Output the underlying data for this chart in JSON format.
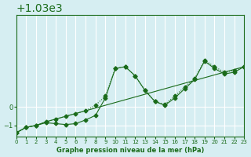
{
  "bg_color": "#d6eef2",
  "grid_color": "#ffffff",
  "line_color": "#1a6b1a",
  "marker_color": "#1a6b1a",
  "xlabel": "Graphe pression niveau de la mer (hPa)",
  "xlabel_color": "#1a6b1a",
  "ylabel_color": "#1a6b1a",
  "xlim": [
    0,
    23
  ],
  "ylim": [
    1028.4,
    1035.0
  ],
  "yticks": [
    1029,
    1030
  ],
  "xticks": [
    0,
    1,
    2,
    3,
    4,
    5,
    6,
    7,
    8,
    9,
    10,
    11,
    12,
    13,
    14,
    15,
    16,
    17,
    18,
    19,
    20,
    21,
    22,
    23
  ],
  "series1_x": [
    0,
    1,
    2,
    3,
    4,
    5,
    6,
    7,
    8,
    9,
    10,
    11,
    12,
    13,
    14,
    15,
    16,
    17,
    18,
    19,
    20,
    21,
    22,
    23
  ],
  "series1_y": [
    1028.6,
    1028.9,
    1029.0,
    1029.2,
    1029.35,
    1029.5,
    1029.65,
    1029.8,
    1029.95,
    1030.1,
    1030.25,
    1030.4,
    1030.55,
    1030.7,
    1030.85,
    1031.0,
    1031.15,
    1031.3,
    1031.45,
    1031.6,
    1031.75,
    1031.9,
    1032.05,
    1032.2
  ],
  "series2_x": [
    0,
    1,
    2,
    3,
    4,
    5,
    6,
    7,
    8,
    9,
    10,
    11,
    12,
    13,
    14,
    15,
    16,
    17,
    18,
    19,
    20,
    21,
    22,
    23
  ],
  "series2_y": [
    1028.6,
    1028.9,
    1029.0,
    1029.15,
    1029.1,
    1029.05,
    1029.1,
    1029.3,
    1029.55,
    1030.5,
    1032.1,
    1032.2,
    1031.7,
    1030.9,
    1030.3,
    1030.1,
    1030.5,
    1031.0,
    1031.5,
    1032.5,
    1032.1,
    1031.8,
    1031.9,
    1032.2
  ],
  "series3_x": [
    0,
    1,
    2,
    3,
    4,
    5,
    6,
    7,
    8,
    9,
    10,
    11,
    12,
    13,
    14,
    15,
    16,
    17,
    18,
    19,
    20,
    21,
    22,
    23
  ],
  "series3_y": [
    1028.6,
    1028.9,
    1029.0,
    1029.2,
    1029.35,
    1029.5,
    1029.65,
    1029.8,
    1030.1,
    1030.6,
    1032.1,
    1032.2,
    1031.7,
    1030.9,
    1030.3,
    1030.15,
    1030.6,
    1031.1,
    1031.55,
    1032.55,
    1032.2,
    1031.9,
    1032.0,
    1032.2
  ]
}
